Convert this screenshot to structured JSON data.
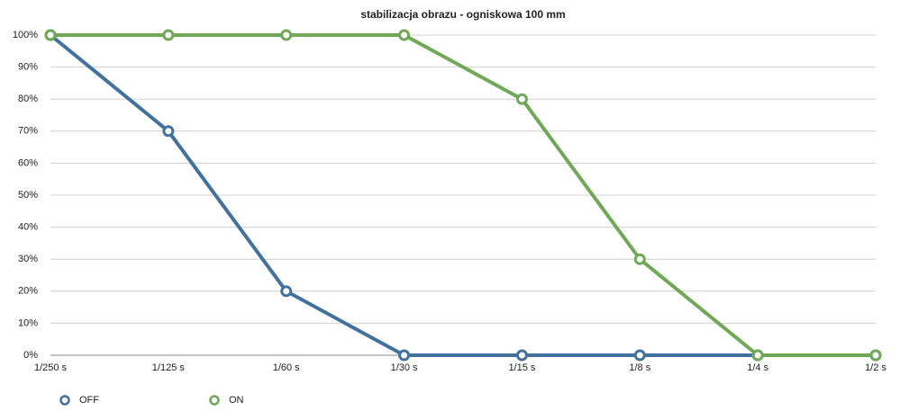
{
  "chart_data": {
    "type": "line",
    "title": "stabilizacja obrazu - ogniskowa 100 mm",
    "categories": [
      "1/250 s",
      "1/125 s",
      "1/60 s",
      "1/30 s",
      "1/15 s",
      "1/8 s",
      "1/4 s",
      "1/2 s"
    ],
    "series": [
      {
        "name": "OFF",
        "color": "#41719f",
        "values": [
          100,
          70,
          20,
          0,
          0,
          0,
          0,
          0
        ]
      },
      {
        "name": "ON",
        "color": "#6fa856",
        "values": [
          100,
          100,
          100,
          100,
          80,
          30,
          0,
          0
        ]
      }
    ],
    "ylim": [
      0,
      100
    ],
    "yticks": [
      {
        "value": 0,
        "label": "0%"
      },
      {
        "value": 10,
        "label": "10%"
      },
      {
        "value": 20,
        "label": "20%"
      },
      {
        "value": 30,
        "label": "30%"
      },
      {
        "value": 40,
        "label": "40%"
      },
      {
        "value": 50,
        "label": "50%"
      },
      {
        "value": 60,
        "label": "60%"
      },
      {
        "value": 70,
        "label": "70%"
      },
      {
        "value": 80,
        "label": "80%"
      },
      {
        "value": 90,
        "label": "90%"
      },
      {
        "value": 100,
        "label": "100%"
      }
    ],
    "grid": true
  }
}
